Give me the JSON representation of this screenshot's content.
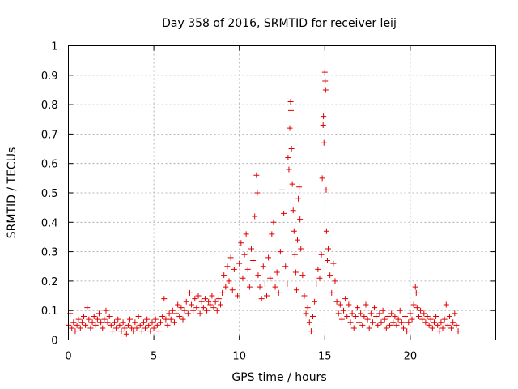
{
  "chart_data": {
    "type": "scatter",
    "title": "Day 358 of 2016, SRMTID for receiver leij",
    "xlabel": "GPS time / hours",
    "ylabel": "SRMTID / TECUs",
    "xlim": [
      0,
      25
    ],
    "ylim": [
      0,
      1
    ],
    "x_ticks": [
      0,
      5,
      10,
      15,
      20
    ],
    "y_ticks": [
      0,
      0.1,
      0.2,
      0.3,
      0.4,
      0.5,
      0.6,
      0.7,
      0.8,
      0.9,
      1
    ],
    "x_tick_labels": [
      "0",
      "5",
      "10",
      "15",
      "20"
    ],
    "y_tick_labels": [
      "0",
      "0.1",
      "0.2",
      "0.3",
      "0.4",
      "0.5",
      "0.6",
      "0.7",
      "0.8",
      "0.9",
      "1"
    ],
    "grid": true,
    "marker": "+",
    "color": "#e00000",
    "series": [
      {
        "name": "SRMTID",
        "points": [
          [
            0.0,
            0.05
          ],
          [
            0.1,
            0.09
          ],
          [
            0.2,
            0.04
          ],
          [
            0.3,
            0.06
          ],
          [
            0.4,
            0.03
          ],
          [
            0.5,
            0.05
          ],
          [
            0.6,
            0.07
          ],
          [
            0.7,
            0.04
          ],
          [
            0.8,
            0.06
          ],
          [
            0.9,
            0.08
          ],
          [
            1.0,
            0.05
          ],
          [
            1.1,
            0.11
          ],
          [
            1.2,
            0.07
          ],
          [
            1.3,
            0.04
          ],
          [
            1.4,
            0.06
          ],
          [
            1.5,
            0.08
          ],
          [
            1.6,
            0.05
          ],
          [
            1.7,
            0.07
          ],
          [
            1.8,
            0.09
          ],
          [
            1.9,
            0.06
          ],
          [
            2.0,
            0.04
          ],
          [
            2.1,
            0.07
          ],
          [
            2.2,
            0.1
          ],
          [
            2.3,
            0.06
          ],
          [
            2.4,
            0.08
          ],
          [
            2.5,
            0.05
          ],
          [
            2.6,
            0.03
          ],
          [
            2.7,
            0.06
          ],
          [
            2.8,
            0.04
          ],
          [
            2.9,
            0.07
          ],
          [
            3.0,
            0.05
          ],
          [
            3.1,
            0.03
          ],
          [
            3.2,
            0.06
          ],
          [
            3.3,
            0.04
          ],
          [
            3.4,
            0.02
          ],
          [
            3.5,
            0.05
          ],
          [
            3.6,
            0.07
          ],
          [
            3.7,
            0.04
          ],
          [
            3.8,
            0.03
          ],
          [
            3.9,
            0.06
          ],
          [
            4.0,
            0.04
          ],
          [
            4.1,
            0.08
          ],
          [
            4.2,
            0.05
          ],
          [
            4.3,
            0.03
          ],
          [
            4.4,
            0.06
          ],
          [
            4.5,
            0.04
          ],
          [
            4.6,
            0.07
          ],
          [
            4.7,
            0.05
          ],
          [
            4.8,
            0.03
          ],
          [
            4.9,
            0.06
          ],
          [
            5.0,
            0.04
          ],
          [
            5.1,
            0.07
          ],
          [
            5.2,
            0.05
          ],
          [
            5.3,
            0.03
          ],
          [
            5.4,
            0.06
          ],
          [
            5.5,
            0.08
          ],
          [
            5.6,
            0.14
          ],
          [
            5.7,
            0.07
          ],
          [
            5.8,
            0.05
          ],
          [
            5.9,
            0.09
          ],
          [
            6.0,
            0.07
          ],
          [
            6.1,
            0.1
          ],
          [
            6.2,
            0.06
          ],
          [
            6.3,
            0.09
          ],
          [
            6.4,
            0.12
          ],
          [
            6.5,
            0.08
          ],
          [
            6.6,
            0.11
          ],
          [
            6.7,
            0.07
          ],
          [
            6.8,
            0.1
          ],
          [
            6.9,
            0.13
          ],
          [
            7.0,
            0.09
          ],
          [
            7.1,
            0.16
          ],
          [
            7.2,
            0.12
          ],
          [
            7.3,
            0.1
          ],
          [
            7.4,
            0.14
          ],
          [
            7.5,
            0.11
          ],
          [
            7.6,
            0.15
          ],
          [
            7.7,
            0.09
          ],
          [
            7.8,
            0.13
          ],
          [
            7.9,
            0.11
          ],
          [
            8.0,
            0.14
          ],
          [
            8.1,
            0.1
          ],
          [
            8.2,
            0.13
          ],
          [
            8.3,
            0.12
          ],
          [
            8.4,
            0.15
          ],
          [
            8.5,
            0.11
          ],
          [
            8.6,
            0.13
          ],
          [
            8.7,
            0.1
          ],
          [
            8.8,
            0.14
          ],
          [
            8.9,
            0.12
          ],
          [
            9.0,
            0.16
          ],
          [
            9.1,
            0.22
          ],
          [
            9.2,
            0.18
          ],
          [
            9.3,
            0.25
          ],
          [
            9.4,
            0.2
          ],
          [
            9.5,
            0.28
          ],
          [
            9.6,
            0.17
          ],
          [
            9.7,
            0.24
          ],
          [
            9.8,
            0.19
          ],
          [
            9.9,
            0.15
          ],
          [
            10.0,
            0.26
          ],
          [
            10.1,
            0.33
          ],
          [
            10.2,
            0.21
          ],
          [
            10.3,
            0.29
          ],
          [
            10.4,
            0.36
          ],
          [
            10.5,
            0.24
          ],
          [
            10.6,
            0.18
          ],
          [
            10.7,
            0.31
          ],
          [
            10.8,
            0.27
          ],
          [
            10.9,
            0.42
          ],
          [
            11.0,
            0.56
          ],
          [
            11.05,
            0.5
          ],
          [
            11.1,
            0.22
          ],
          [
            11.2,
            0.18
          ],
          [
            11.3,
            0.14
          ],
          [
            11.4,
            0.25
          ],
          [
            11.5,
            0.19
          ],
          [
            11.6,
            0.15
          ],
          [
            11.7,
            0.28
          ],
          [
            11.8,
            0.21
          ],
          [
            11.9,
            0.36
          ],
          [
            12.0,
            0.4
          ],
          [
            12.1,
            0.18
          ],
          [
            12.2,
            0.23
          ],
          [
            12.3,
            0.16
          ],
          [
            12.4,
            0.3
          ],
          [
            12.5,
            0.51
          ],
          [
            12.6,
            0.43
          ],
          [
            12.7,
            0.25
          ],
          [
            12.8,
            0.19
          ],
          [
            12.85,
            0.62
          ],
          [
            12.9,
            0.58
          ],
          [
            12.95,
            0.72
          ],
          [
            13.0,
            0.81
          ],
          [
            13.02,
            0.78
          ],
          [
            13.05,
            0.65
          ],
          [
            13.1,
            0.53
          ],
          [
            13.15,
            0.44
          ],
          [
            13.2,
            0.37
          ],
          [
            13.25,
            0.29
          ],
          [
            13.3,
            0.23
          ],
          [
            13.35,
            0.17
          ],
          [
            13.4,
            0.34
          ],
          [
            13.45,
            0.48
          ],
          [
            13.5,
            0.52
          ],
          [
            13.55,
            0.41
          ],
          [
            13.6,
            0.31
          ],
          [
            13.7,
            0.22
          ],
          [
            13.8,
            0.15
          ],
          [
            13.9,
            0.09
          ],
          [
            14.0,
            0.11
          ],
          [
            14.1,
            0.06
          ],
          [
            14.2,
            0.03
          ],
          [
            14.3,
            0.08
          ],
          [
            14.4,
            0.13
          ],
          [
            14.5,
            0.19
          ],
          [
            14.6,
            0.24
          ],
          [
            14.7,
            0.21
          ],
          [
            14.8,
            0.29
          ],
          [
            14.85,
            0.55
          ],
          [
            14.9,
            0.73
          ],
          [
            14.92,
            0.76
          ],
          [
            14.95,
            0.67
          ],
          [
            15.0,
            0.91
          ],
          [
            15.02,
            0.88
          ],
          [
            15.05,
            0.85
          ],
          [
            15.08,
            0.51
          ],
          [
            15.1,
            0.37
          ],
          [
            15.15,
            0.27
          ],
          [
            15.2,
            0.31
          ],
          [
            15.3,
            0.22
          ],
          [
            15.4,
            0.16
          ],
          [
            15.5,
            0.26
          ],
          [
            15.6,
            0.2
          ],
          [
            15.7,
            0.13
          ],
          [
            15.8,
            0.09
          ],
          [
            15.9,
            0.12
          ],
          [
            16.0,
            0.07
          ],
          [
            16.1,
            0.1
          ],
          [
            16.2,
            0.14
          ],
          [
            16.3,
            0.08
          ],
          [
            16.4,
            0.12
          ],
          [
            16.5,
            0.06
          ],
          [
            16.6,
            0.09
          ],
          [
            16.7,
            0.04
          ],
          [
            16.8,
            0.08
          ],
          [
            16.9,
            0.11
          ],
          [
            17.0,
            0.06
          ],
          [
            17.1,
            0.09
          ],
          [
            17.2,
            0.05
          ],
          [
            17.3,
            0.08
          ],
          [
            17.4,
            0.12
          ],
          [
            17.5,
            0.07
          ],
          [
            17.6,
            0.04
          ],
          [
            17.7,
            0.09
          ],
          [
            17.8,
            0.06
          ],
          [
            17.9,
            0.11
          ],
          [
            18.0,
            0.08
          ],
          [
            18.1,
            0.05
          ],
          [
            18.2,
            0.09
          ],
          [
            18.3,
            0.06
          ],
          [
            18.4,
            0.1
          ],
          [
            18.5,
            0.07
          ],
          [
            18.6,
            0.04
          ],
          [
            18.7,
            0.08
          ],
          [
            18.8,
            0.05
          ],
          [
            18.9,
            0.09
          ],
          [
            19.0,
            0.06
          ],
          [
            19.1,
            0.08
          ],
          [
            19.2,
            0.05
          ],
          [
            19.3,
            0.07
          ],
          [
            19.4,
            0.1
          ],
          [
            19.5,
            0.06
          ],
          [
            19.6,
            0.04
          ],
          [
            19.7,
            0.08
          ],
          [
            19.8,
            0.03
          ],
          [
            19.9,
            0.06
          ],
          [
            20.0,
            0.09
          ],
          [
            20.1,
            0.07
          ],
          [
            20.2,
            0.12
          ],
          [
            20.3,
            0.18
          ],
          [
            20.35,
            0.16
          ],
          [
            20.4,
            0.11
          ],
          [
            20.5,
            0.08
          ],
          [
            20.6,
            0.1
          ],
          [
            20.7,
            0.07
          ],
          [
            20.8,
            0.09
          ],
          [
            20.9,
            0.06
          ],
          [
            21.0,
            0.08
          ],
          [
            21.1,
            0.05
          ],
          [
            21.2,
            0.07
          ],
          [
            21.3,
            0.04
          ],
          [
            21.4,
            0.06
          ],
          [
            21.5,
            0.08
          ],
          [
            21.6,
            0.05
          ],
          [
            21.7,
            0.03
          ],
          [
            21.8,
            0.06
          ],
          [
            21.9,
            0.04
          ],
          [
            22.0,
            0.07
          ],
          [
            22.1,
            0.12
          ],
          [
            22.2,
            0.05
          ],
          [
            22.3,
            0.08
          ],
          [
            22.4,
            0.04
          ],
          [
            22.5,
            0.06
          ],
          [
            22.6,
            0.09
          ],
          [
            22.7,
            0.05
          ],
          [
            22.8,
            0.03
          ]
        ]
      }
    ]
  }
}
